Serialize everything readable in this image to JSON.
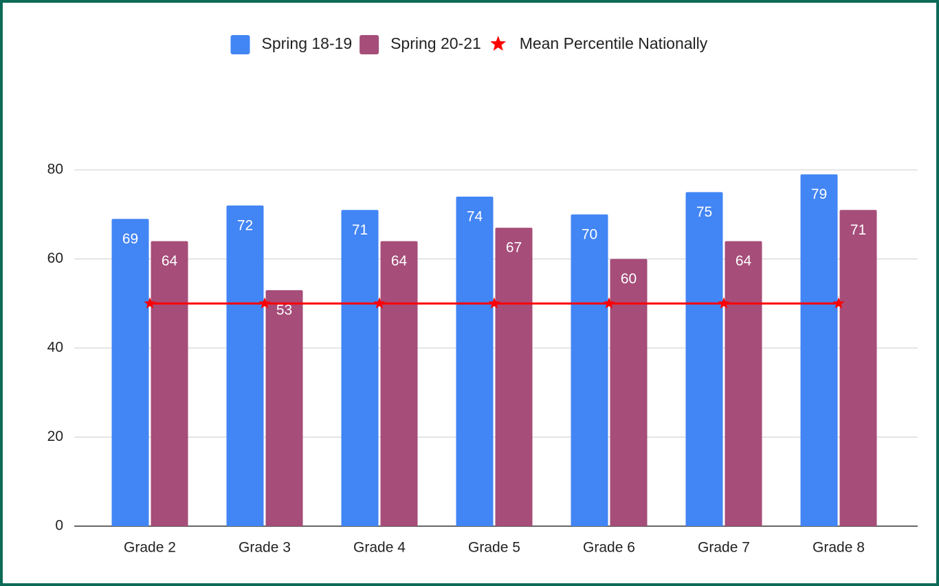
{
  "chart_data": {
    "type": "bar",
    "categories": [
      "Grade 2",
      "Grade 3",
      "Grade 4",
      "Grade 5",
      "Grade 6",
      "Grade 7",
      "Grade 8"
    ],
    "series": [
      {
        "name": "Spring 18-19",
        "color": "#4285f4",
        "values": [
          69,
          72,
          71,
          74,
          70,
          75,
          79
        ]
      },
      {
        "name": "Spring 20-21",
        "color": "#a64d79",
        "values": [
          64,
          53,
          64,
          67,
          60,
          64,
          71
        ]
      },
      {
        "name": "Mean Percentile Nationally",
        "color": "#ff0000",
        "type": "line",
        "marker": "star",
        "values": [
          50,
          50,
          50,
          50,
          50,
          50,
          50
        ]
      }
    ],
    "ylim": [
      0,
      80
    ],
    "yticks": [
      0,
      20,
      40,
      60,
      80
    ],
    "grid": true,
    "legend": "top",
    "data_labels": true
  }
}
